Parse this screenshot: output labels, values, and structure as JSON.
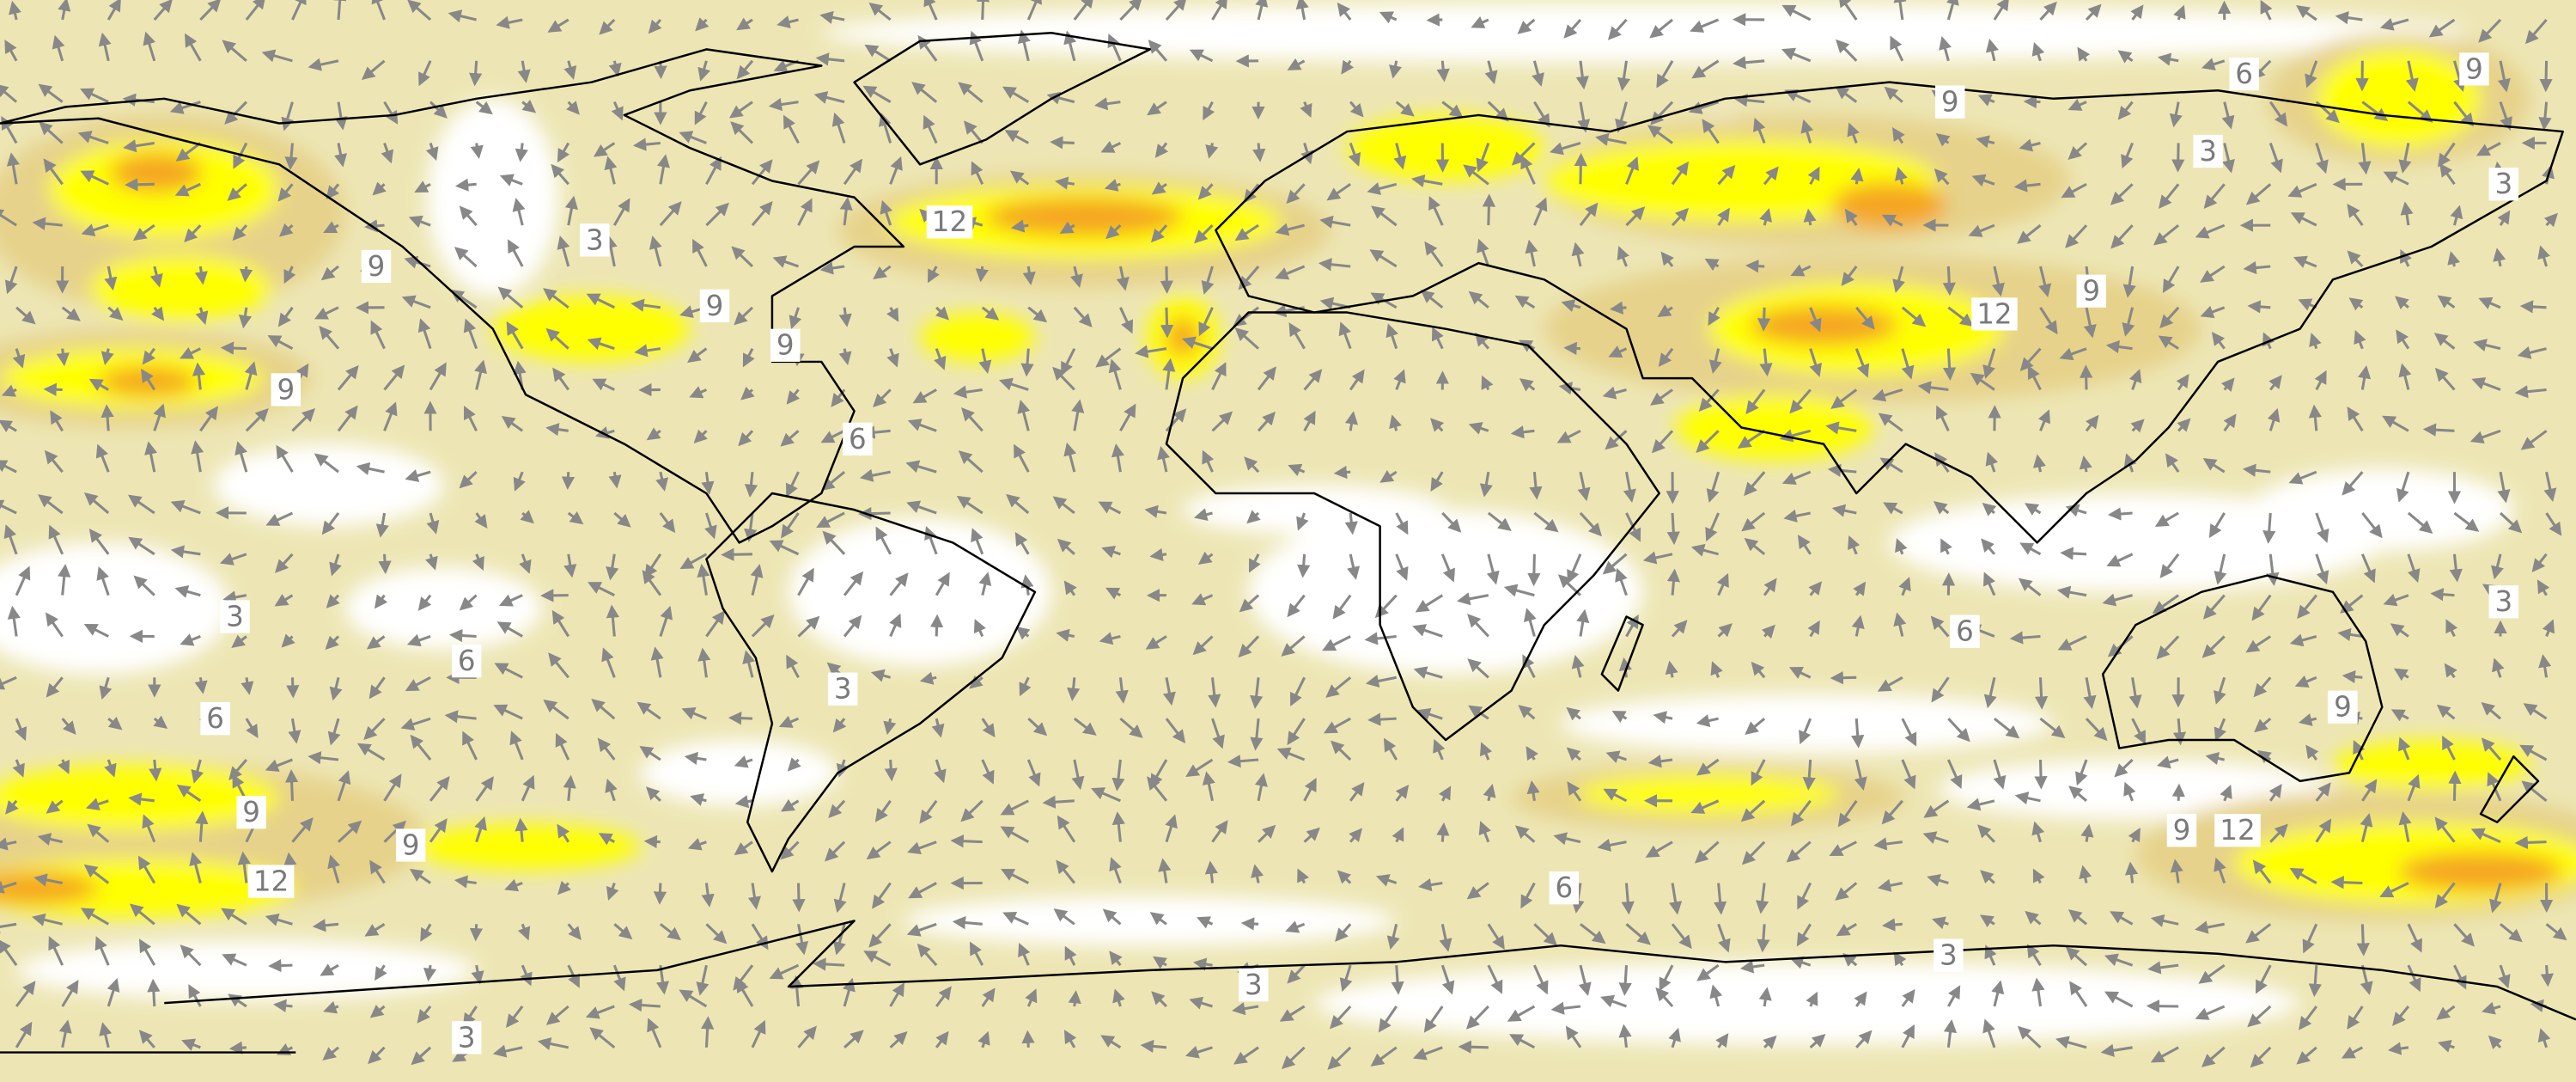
{
  "map": {
    "contour_labels": [
      "12",
      "9",
      "3",
      "9",
      "9",
      "9",
      "6",
      "9",
      "6",
      "9",
      "3",
      "3",
      "12",
      "9",
      "3",
      "6",
      "6",
      "3",
      "6",
      "3",
      "9",
      "9",
      "9",
      "12",
      "9",
      "12",
      "6",
      "3",
      "3",
      "3"
    ]
  }
}
